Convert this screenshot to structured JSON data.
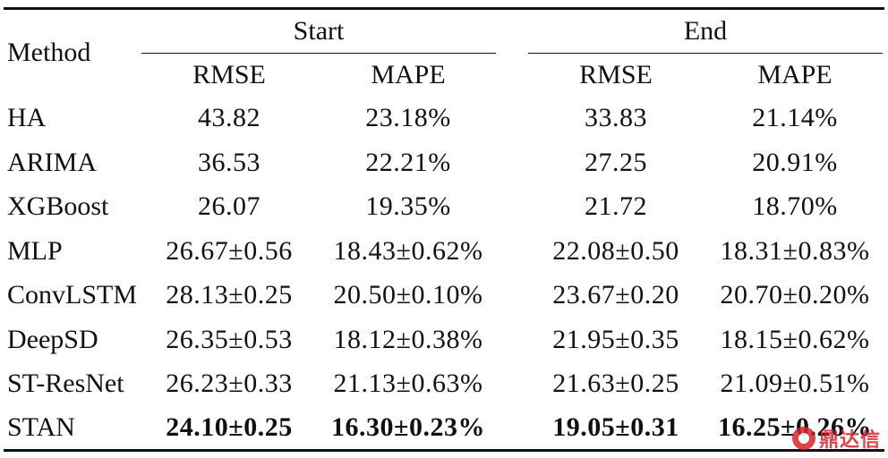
{
  "table": {
    "header": {
      "method": "Method",
      "groups": [
        "Start",
        "End"
      ],
      "metrics": [
        "RMSE",
        "MAPE",
        "RMSE",
        "MAPE"
      ]
    },
    "rows": [
      {
        "name": "HA",
        "values": [
          "43.82",
          "23.18%",
          "33.83",
          "21.14%"
        ]
      },
      {
        "name": "ARIMA",
        "values": [
          "36.53",
          "22.21%",
          "27.25",
          "20.91%"
        ]
      },
      {
        "name": "XGBoost",
        "values": [
          "26.07",
          "19.35%",
          "21.72",
          "18.70%"
        ]
      },
      {
        "name": "MLP",
        "values": [
          "26.67±0.56",
          "18.43±0.62%",
          "22.08±0.50",
          "18.31±0.83%"
        ]
      },
      {
        "name": "ConvLSTM",
        "values": [
          "28.13±0.25",
          "20.50±0.10%",
          "23.67±0.20",
          "20.70±0.20%"
        ]
      },
      {
        "name": "DeepSD",
        "values": [
          "26.35±0.53",
          "18.12±0.38%",
          "21.95±0.35",
          "18.15±0.62%"
        ]
      },
      {
        "name": "ST-ResNet",
        "values": [
          "26.23±0.33",
          "21.13±0.63%",
          "21.63±0.25",
          "21.09±0.51%"
        ]
      },
      {
        "name": "STAN",
        "values": [
          "24.10±0.25",
          "16.30±0.23%",
          "19.05±0.31",
          "16.25±0.26%"
        ]
      }
    ]
  },
  "watermark": {
    "text": "鼎达信",
    "icon": "dingdaxin-logo-icon",
    "color": "#d8232a"
  }
}
